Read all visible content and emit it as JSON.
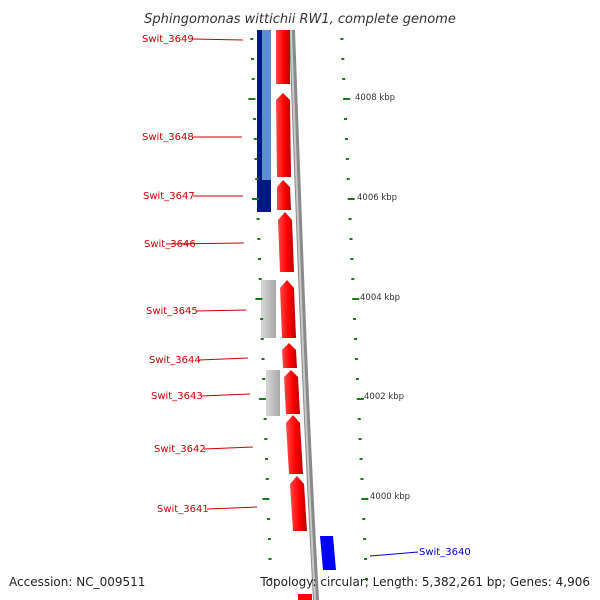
{
  "title": "Sphingomonas wittichii RW1, complete genome",
  "footer": {
    "accession": "Accession: NC_009511",
    "stats": "Topology: circular; Length: 5,382,261 bp; Genes: 4,906"
  },
  "genes": [
    {
      "name": "Swit_3649",
      "color": "#cc0000"
    },
    {
      "name": "Swit_3648",
      "color": "#cc0000"
    },
    {
      "name": "Swit_3647",
      "color": "#cc0000"
    },
    {
      "name": "Swit_3646",
      "color": "#cc0000"
    },
    {
      "name": "Swit_3645",
      "color": "#cc0000"
    },
    {
      "name": "Swit_3644",
      "color": "#cc0000"
    },
    {
      "name": "Swit_3643",
      "color": "#cc0000"
    },
    {
      "name": "Swit_3642",
      "color": "#cc0000"
    },
    {
      "name": "Swit_3641",
      "color": "#cc0000"
    },
    {
      "name": "Swit_3640",
      "color": "#0000cc"
    }
  ],
  "scale_labels": [
    "4008 kbp",
    "4006 kbp",
    "4004 kbp",
    "4002 kbp",
    "4000 kbp"
  ],
  "colors": {
    "forward_gene": "#ff0000",
    "reverse_gene_dark": "#001a80",
    "reverse_gene_light": "#5b8fd4",
    "grey_gene": "#c8c8c8",
    "highlight_gene": "#0000ff",
    "backbone": "#8a8a8a",
    "ticks": "#1a7a1a"
  }
}
